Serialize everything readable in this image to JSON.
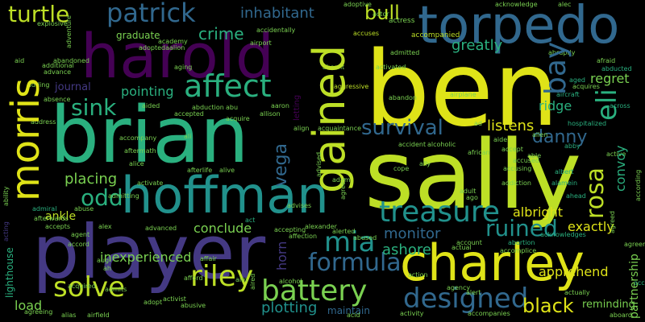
{
  "words": {
    "ben": "ben",
    "sally": "sally",
    "brian": "brian",
    "player": "player",
    "harold": "harold",
    "hoffman": "hoffman",
    "torpedo": "torpedo",
    "charley": "charley",
    "morris": "morris",
    "gained": "gained",
    "treasure": "treasure",
    "patrick": "patrick",
    "turtle": "turtle",
    "bull": "bull",
    "affect": "affect",
    "battery": "battery",
    "riley": "riley",
    "designed": "designed",
    "solve": "solve",
    "formula": "formula",
    "mia": "mia",
    "rosa": "rosa",
    "eli": "eli",
    "bay": "bay",
    "ruined": "ruined",
    "survival": "survival",
    "sink": "sink",
    "odd": "odd",
    "vega": "vega",
    "danny": "danny",
    "black": "black",
    "crime": "crime",
    "inhabitant": "inhabitant",
    "greatly": "greatly",
    "regret": "regret",
    "ridge": "ridge",
    "listens": "listens",
    "placing": "placing",
    "monitor": "monitor",
    "albright": "albright",
    "exactly": "exactly",
    "apprehend": "apprehend",
    "ashore": "ashore",
    "plotting": "plotting",
    "maintain": "maintain",
    "inexperienced": "inexperienced",
    "conclude": "conclude",
    "pointing": "pointing",
    "convoy": "convoy",
    "horn": "horn",
    "load": "load",
    "ankle": "ankle",
    "graduate": "graduate",
    "journal": "journal",
    "partnership": "partnership",
    "lighthouse": "lighthouse",
    "reminding": "reminding",
    "accompanied": "accompanied",
    "adoptive": "adoptive",
    "acknowledge": "acknowledge",
    "abruptly": "abruptly",
    "alec": "alec",
    "actress": "actress",
    "accidentally": "accidentally",
    "explosive": "explosive",
    "aid": "aid",
    "abandoned": "abandoned",
    "additional": "additional",
    "advance": "advance",
    "adding": "adding",
    "absence": "absence",
    "address": "address",
    "ability": "ability",
    "acting": "acting",
    "admiral": "admiral",
    "afterwards": "afterwards",
    "accepts": "accepts",
    "agent": "agent",
    "accused": "accused",
    "accusing": "accusing",
    "accept": "accept",
    "abandon": "abandon",
    "airplane": "airplane",
    "acquires": "acquires",
    "aircraft": "aircraft",
    "afraid": "afraid",
    "abducted": "abducted",
    "across": "across",
    "aged": "aged",
    "abby": "abby",
    "active": "active",
    "albert": "albert",
    "alamein": "alamein",
    "ahead": "ahead",
    "according": "according",
    "acknowledges": "acknowledges",
    "agreement": "agreement",
    "access": "access",
    "aboard": "aboard",
    "accident": "accident",
    "alcoholic": "alcoholic",
    "adult": "adult",
    "ago": "ago",
    "addiction": "addiction",
    "abortion": "abortion",
    "accomplice": "accomplice",
    "alive": "alive",
    "afterlife": "afterlife",
    "abduction": "abduction",
    "accepted": "accepted",
    "acquire": "acquire",
    "aftermath": "aftermath",
    "accompany": "accompany",
    "activate": "activate",
    "admitting": "admitting",
    "alien": "alien",
    "abuse": "abuse",
    "alexander": "alexander",
    "accepting": "accepting",
    "alerted": "alerted",
    "affection": "affection",
    "abused": "abused",
    "account": "account",
    "actual": "actual",
    "action": "action",
    "alert": "alert",
    "agency": "agency",
    "activity": "activity",
    "acid": "acid",
    "alcohol": "alcohol",
    "affair": "affair",
    "aim": "aim",
    "aired": "aired",
    "adopt": "adopt",
    "activist": "activist",
    "afford": "afford",
    "abusive": "abusive",
    "acquired": "acquired",
    "admits": "admits",
    "agreeing": "agreeing",
    "alias": "alias",
    "airfield": "airfield",
    "ali": "ali",
    "alice": "alice",
    "accompanies": "accompanies",
    "actually": "actually",
    "aide": "aide",
    "african": "african",
    "agrees": "agrees",
    "agreed": "agreed",
    "ad": "ad",
    "abu": "abu",
    "aided": "aided",
    "absent": "absent",
    "accuses": "accuses",
    "activated": "activated",
    "aggressive": "aggressive",
    "admitted": "admitted",
    "actor": "actor",
    "airport": "airport",
    "adventure": "adventure",
    "adoptedaalion": "adoptedaalion",
    "academy": "academy",
    "aging": "aging",
    "aaron": "aaron",
    "allison": "allison",
    "align": "align",
    "acquaintance": "acquaintance",
    "cope": "cope",
    "ally": "ally",
    "admire": "admire",
    "alex": "alex",
    "able": "able",
    "allen": "allen",
    "aaa": "aaa",
    "adam": "adam",
    "advised": "advised",
    "advises": "advises",
    "act": "act",
    "aug": "aug",
    "alcol": "alcol",
    "ah": "ah",
    "advanced": "advanced",
    "ag": "ag",
    "abba": "abba",
    "alberto": "alberto",
    "alt": "alt",
    "afro": "afro",
    "accord": "accord",
    "letting": "letting",
    "hospitalized": "hospitalized"
  },
  "colors": {
    "yellow": "#dfe318",
    "lime": "#bddf26",
    "green": "#7ad151",
    "teal_green": "#2ab07f",
    "teal": "#21918c",
    "blue": "#31688e",
    "indigo": "#443983",
    "purple": "#440154",
    "grey_green": "#35b779"
  }
}
